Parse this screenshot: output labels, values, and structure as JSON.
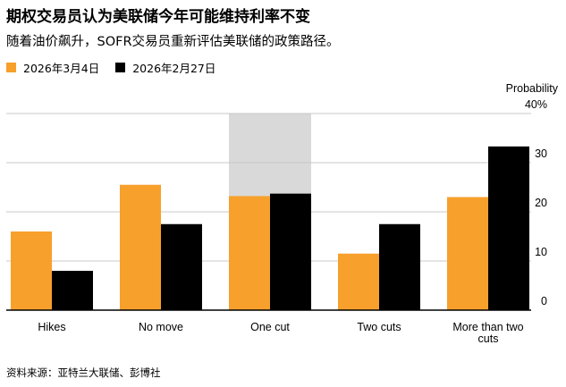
{
  "header": {
    "title": "期权交易员认为美联储今年可能维持利率不变",
    "subtitle": "随着油价飙升，SOFR交易员重新评估美联储的政策路径。"
  },
  "source": "资料来源：亚特兰大联储、彭博社",
  "colors": {
    "series_1": "#f7a02c",
    "series_2": "#000000",
    "highlight": "#d9d9d9",
    "grid": "#c8c8c8"
  },
  "chart_data": {
    "type": "bar",
    "categories": [
      "Hikes",
      "No move",
      "One cut",
      "Two cuts",
      "More than two cuts"
    ],
    "category_lines": [
      [
        "Hikes"
      ],
      [
        "No move"
      ],
      [
        "One cut"
      ],
      [
        "Two cuts"
      ],
      [
        "More than two",
        "cuts"
      ]
    ],
    "series": [
      {
        "name": "2026年3月4日",
        "values": [
          16,
          25.5,
          23.2,
          11.5,
          23
        ]
      },
      {
        "name": "2026年2月27日",
        "values": [
          8,
          17.5,
          23.7,
          17.5,
          33.3
        ]
      }
    ],
    "highlighted_category": "No move",
    "ylabel": "Probability",
    "ylim": [
      0,
      40
    ],
    "yticks": [
      0,
      10,
      20,
      30,
      40
    ],
    "ytick_labels": [
      "0",
      "10",
      "20",
      "30",
      "40%"
    ],
    "grid": true,
    "legend_position": "top-left"
  }
}
